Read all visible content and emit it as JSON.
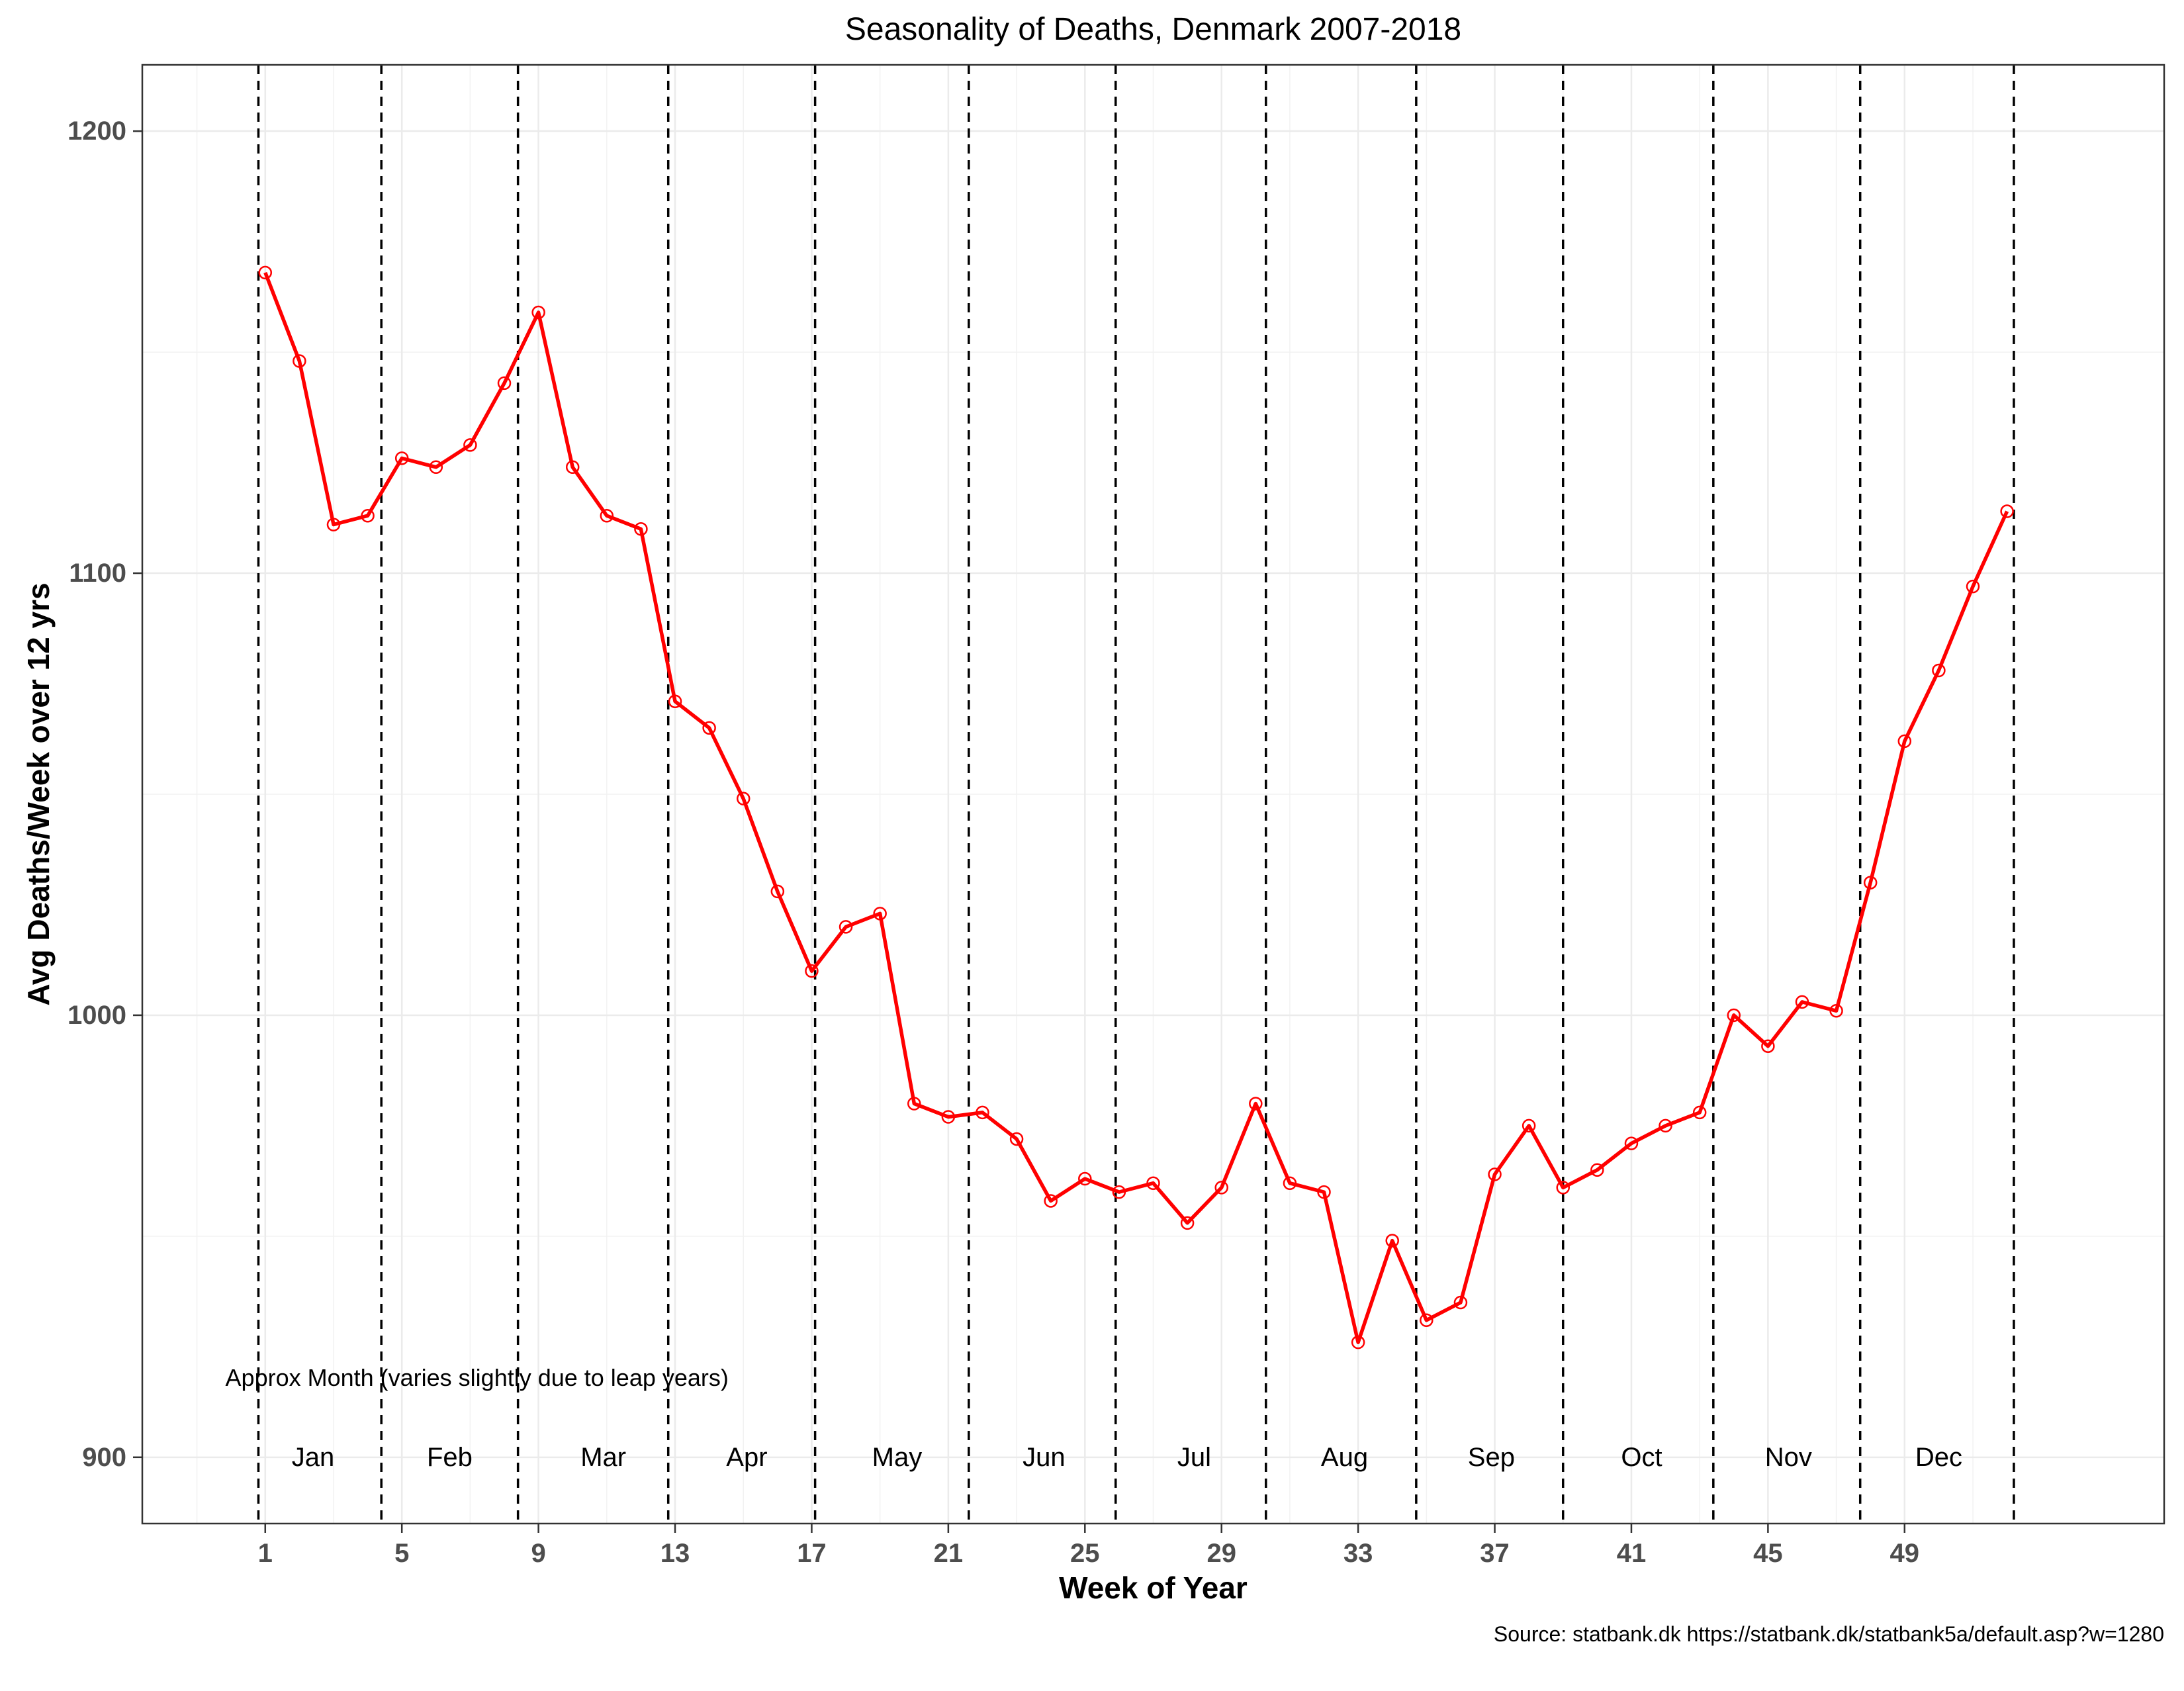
{
  "chart_data": {
    "type": "line",
    "title": "Seasonality of Deaths, Denmark 2007-2018",
    "xlabel": "Week of Year",
    "ylabel": "Avg Deaths/Week over 12 yrs",
    "caption": "Source: statbank.dk https://statbank.dk/statbank5a/default.asp?w=1280",
    "annotation": "Approx Month (varies slightly due to leap years)",
    "xlim": [
      -2.6,
      56.6
    ],
    "ylim": [
      885,
      1215
    ],
    "x_ticks": [
      1,
      5,
      9,
      13,
      17,
      21,
      25,
      29,
      33,
      37,
      41,
      45,
      49
    ],
    "y_ticks": [
      900,
      1000,
      1100,
      1200
    ],
    "grid": true,
    "line_color": "#ff0000",
    "week": [
      1,
      2,
      3,
      4,
      5,
      6,
      7,
      8,
      9,
      10,
      11,
      12,
      13,
      14,
      15,
      16,
      17,
      18,
      19,
      20,
      21,
      22,
      23,
      24,
      25,
      26,
      27,
      28,
      29,
      30,
      31,
      32,
      33,
      34,
      35,
      36,
      37,
      38,
      39,
      40,
      41,
      42,
      43,
      44,
      45,
      46,
      47,
      48,
      49,
      50,
      51,
      52
    ],
    "deaths": [
      1168,
      1148,
      1111,
      1113,
      1126,
      1124,
      1129,
      1143,
      1159,
      1124,
      1113,
      1110,
      1071,
      1065,
      1049,
      1028,
      1010,
      1020,
      1023,
      980,
      977,
      978,
      972,
      958,
      963,
      960,
      962,
      953,
      961,
      980,
      962,
      960,
      926,
      949,
      931,
      935,
      964,
      975,
      961,
      965,
      971,
      975,
      978,
      1000,
      993,
      1003,
      1001,
      1030,
      1062,
      1078,
      1097,
      1114
    ],
    "month_boundaries": [
      0.8,
      4.4,
      8.4,
      12.8,
      17.1,
      21.6,
      25.9,
      30.3,
      34.7,
      39.0,
      43.4,
      47.7,
      52.2
    ],
    "months": [
      "Jan",
      "Feb",
      "Mar",
      "Apr",
      "May",
      "Jun",
      "Jul",
      "Aug",
      "Sep",
      "Oct",
      "Nov",
      "Dec"
    ],
    "month_label_x": [
      2.4,
      6.4,
      10.9,
      15.1,
      19.5,
      23.8,
      28.2,
      32.6,
      36.9,
      41.3,
      45.6,
      50.0
    ],
    "month_label_y": 900,
    "annotation_x": 7.2,
    "annotation_y": 918
  }
}
